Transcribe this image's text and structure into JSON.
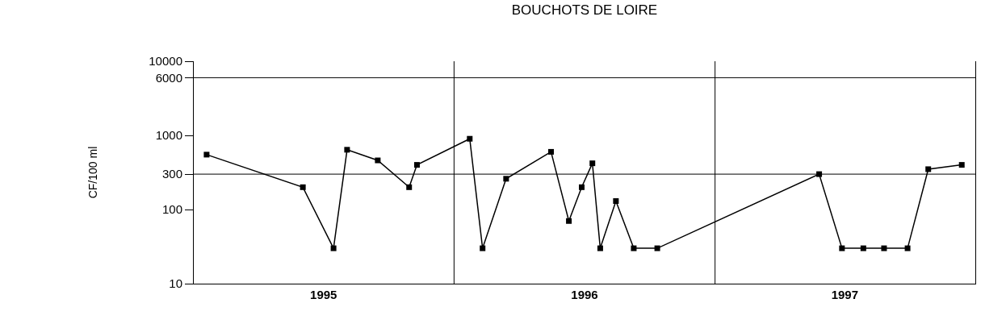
{
  "chart_data": {
    "type": "line",
    "title": "BOUCHOTS DE LOIRE",
    "ylabel": "CF/100 ml",
    "x": [
      "1995-01-19",
      "1995-06-03",
      "1995-07-16",
      "1995-08-04",
      "1995-09-16",
      "1995-10-30",
      "1995-11-10",
      "1996-01-23",
      "1996-02-10",
      "1996-03-14",
      "1996-05-16",
      "1996-06-10",
      "1996-06-28",
      "1996-07-13",
      "1996-07-24",
      "1996-08-15",
      "1996-09-09",
      "1996-10-12",
      "1997-05-27",
      "1997-06-28",
      "1997-07-28",
      "1997-08-26",
      "1997-09-28",
      "1997-10-27",
      "1997-12-13"
    ],
    "series": [
      {
        "color": "#000000",
        "values": [
          550,
          200,
          30,
          640,
          460,
          200,
          400,
          900,
          30,
          260,
          600,
          70,
          200,
          420,
          30,
          130,
          30,
          30,
          300,
          30,
          30,
          30,
          30,
          350,
          400
        ]
      }
    ],
    "log": "y",
    "xlim": [
      "1995-01-01",
      "1998-01-01"
    ],
    "ylim": [
      10,
      10000
    ],
    "xticks": [
      {
        "value": "1995-07-02",
        "label": "1995"
      },
      {
        "value": "1996-07-02",
        "label": "1996"
      },
      {
        "value": "1997-07-02",
        "label": "1997"
      }
    ],
    "yticks": [
      10,
      100,
      300,
      1000,
      6000,
      10000
    ],
    "ref_lines": [
      {
        "axis": "y",
        "value": 300,
        "color": "#000000"
      },
      {
        "axis": "y",
        "value": 6000,
        "color": "#000000"
      },
      {
        "axis": "x",
        "value": "1996-01-01",
        "color": "#000000"
      },
      {
        "axis": "x",
        "value": "1997-01-01",
        "color": "#000000"
      }
    ],
    "grid": false,
    "marker": "square",
    "line_style": "solid"
  }
}
